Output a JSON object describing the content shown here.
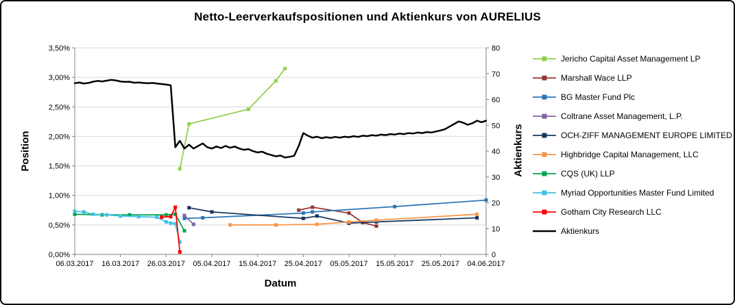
{
  "chart_data": {
    "type": "line",
    "title": "Netto-Leerverkaufspositionen und Aktienkurs von AURELIUS",
    "xlabel": "Datum",
    "ylabel_left": "Position",
    "ylabel_right": "Aktienkurs",
    "x_unit": "days since 06.03.2017",
    "x_range": [
      0,
      90
    ],
    "x_ticks": [
      {
        "day": 0,
        "label": "06.03.2017"
      },
      {
        "day": 10,
        "label": "16.03.2017"
      },
      {
        "day": 20,
        "label": "26.03.2017"
      },
      {
        "day": 30,
        "label": "05.04.2017"
      },
      {
        "day": 40,
        "label": "15.04.2017"
      },
      {
        "day": 50,
        "label": "25.04.2017"
      },
      {
        "day": 60,
        "label": "05.05.2017"
      },
      {
        "day": 70,
        "label": "15.05.2017"
      },
      {
        "day": 80,
        "label": "25.05.2017"
      },
      {
        "day": 90,
        "label": "04.06.2017"
      }
    ],
    "y_left": {
      "min": 0,
      "max": 3.5,
      "step": 0.5,
      "unit": "%",
      "tick_labels": [
        "0,00%",
        "0,50%",
        "1,00%",
        "1,50%",
        "2,00%",
        "2,50%",
        "3,00%",
        "3,50%"
      ]
    },
    "y_right": {
      "min": 0,
      "max": 80,
      "step": 10,
      "tick_labels": [
        "0",
        "10",
        "20",
        "30",
        "40",
        "50",
        "60",
        "70",
        "80"
      ]
    },
    "grid": "horizontal",
    "legend_position": "right",
    "series": [
      {
        "name": "Jericho Capital Asset Management LP",
        "color": "#92D050",
        "axis": "left",
        "width": 1.8,
        "markers": true,
        "points": [
          [
            23,
            1.45
          ],
          [
            25,
            2.21
          ],
          [
            38,
            2.46
          ],
          [
            44,
            2.94
          ],
          [
            46,
            3.15
          ]
        ]
      },
      {
        "name": "Marshall Wace LLP",
        "color": "#953735",
        "axis": "left",
        "width": 1.8,
        "markers": true,
        "points": [
          [
            49,
            0.75
          ],
          [
            52,
            0.8
          ],
          [
            60,
            0.7
          ],
          [
            63,
            0.54
          ],
          [
            66,
            0.48
          ]
        ]
      },
      {
        "name": "BG Master Fund Plc",
        "color": "#2E75B6",
        "axis": "left",
        "width": 1.8,
        "markers": true,
        "points": [
          [
            24,
            0.61
          ],
          [
            28,
            0.62
          ],
          [
            50,
            0.7
          ],
          [
            52,
            0.72
          ],
          [
            70,
            0.81
          ],
          [
            90,
            0.92
          ]
        ]
      },
      {
        "name": "Coltrane Asset Management, L.P.",
        "color": "#8064A2",
        "axis": "left",
        "width": 1.8,
        "markers": true,
        "points": [
          [
            24,
            0.66
          ],
          [
            26,
            0.51
          ]
        ]
      },
      {
        "name": "OCH-ZIFF MANAGEMENT EUROPE LIMITED",
        "color": "#17375E",
        "axis": "left",
        "width": 1.8,
        "markers": true,
        "points": [
          [
            25,
            0.79
          ],
          [
            30,
            0.72
          ],
          [
            50,
            0.61
          ],
          [
            53,
            0.65
          ],
          [
            60,
            0.53
          ],
          [
            66,
            0.55
          ],
          [
            88,
            0.62
          ]
        ]
      },
      {
        "name": "Highbridge Capital Management, LLC",
        "color": "#F79646",
        "axis": "left",
        "width": 1.8,
        "markers": true,
        "points": [
          [
            34,
            0.5
          ],
          [
            44,
            0.5
          ],
          [
            53,
            0.51
          ],
          [
            60,
            0.55
          ],
          [
            66,
            0.58
          ],
          [
            88,
            0.68
          ]
        ]
      },
      {
        "name": "CQS (UK) LLP",
        "color": "#00A550",
        "axis": "left",
        "width": 1.8,
        "markers": true,
        "points": [
          [
            0,
            0.68
          ],
          [
            6,
            0.67
          ],
          [
            12,
            0.67
          ],
          [
            20,
            0.67
          ],
          [
            22,
            0.68
          ],
          [
            24,
            0.4
          ]
        ]
      },
      {
        "name": "Myriad Opportunities Master Fund Limited",
        "color": "#3FC1E5",
        "axis": "left",
        "width": 1.8,
        "markers": true,
        "points": [
          [
            0,
            0.73
          ],
          [
            2,
            0.72
          ],
          [
            4,
            0.68
          ],
          [
            7,
            0.67
          ],
          [
            10,
            0.65
          ],
          [
            14,
            0.64
          ],
          [
            18,
            0.63
          ],
          [
            20,
            0.55
          ],
          [
            21,
            0.53
          ],
          [
            22,
            0.52
          ],
          [
            23,
            0.21
          ]
        ]
      },
      {
        "name": "Gotham City Research LLC",
        "color": "#FF0000",
        "axis": "left",
        "width": 1.8,
        "markers": true,
        "points": [
          [
            19,
            0.63
          ],
          [
            21,
            0.64
          ],
          [
            22,
            0.8
          ],
          [
            23,
            0.04
          ]
        ]
      },
      {
        "name": "Aktienkurs",
        "color": "#000000",
        "axis": "right",
        "width": 2.5,
        "markers": false,
        "points": [
          [
            0,
            66.3
          ],
          [
            1,
            66.6
          ],
          [
            2,
            66.2
          ],
          [
            3,
            66.4
          ],
          [
            4,
            66.9
          ],
          [
            5,
            67.2
          ],
          [
            6,
            67.0
          ],
          [
            7,
            67.3
          ],
          [
            8,
            67.6
          ],
          [
            9,
            67.4
          ],
          [
            10,
            67.0
          ],
          [
            11,
            66.8
          ],
          [
            12,
            66.9
          ],
          [
            13,
            66.5
          ],
          [
            14,
            66.6
          ],
          [
            15,
            66.4
          ],
          [
            16,
            66.3
          ],
          [
            17,
            66.4
          ],
          [
            18,
            66.2
          ],
          [
            19,
            66.0
          ],
          [
            20,
            65.8
          ],
          [
            21,
            65.5
          ],
          [
            22,
            41.5
          ],
          [
            23,
            44.0
          ],
          [
            24,
            41.0
          ],
          [
            25,
            42.5
          ],
          [
            26,
            41.0
          ],
          [
            27,
            42.0
          ],
          [
            28,
            43.0
          ],
          [
            29,
            41.5
          ],
          [
            30,
            41.0
          ],
          [
            31,
            41.8
          ],
          [
            32,
            41.2
          ],
          [
            33,
            42.0
          ],
          [
            34,
            41.3
          ],
          [
            35,
            41.8
          ],
          [
            36,
            41.0
          ],
          [
            37,
            40.5
          ],
          [
            38,
            40.8
          ],
          [
            39,
            40.0
          ],
          [
            40,
            39.5
          ],
          [
            41,
            39.8
          ],
          [
            42,
            39.0
          ],
          [
            43,
            38.5
          ],
          [
            44,
            38.0
          ],
          [
            45,
            38.3
          ],
          [
            46,
            37.5
          ],
          [
            47,
            37.8
          ],
          [
            48,
            38.2
          ],
          [
            49,
            42.0
          ],
          [
            50,
            47.0
          ],
          [
            51,
            46.0
          ],
          [
            52,
            45.2
          ],
          [
            53,
            45.6
          ],
          [
            54,
            45.0
          ],
          [
            55,
            45.4
          ],
          [
            56,
            45.1
          ],
          [
            57,
            45.5
          ],
          [
            58,
            45.2
          ],
          [
            59,
            45.6
          ],
          [
            60,
            45.4
          ],
          [
            61,
            45.8
          ],
          [
            62,
            45.5
          ],
          [
            63,
            46.0
          ],
          [
            64,
            45.8
          ],
          [
            65,
            46.2
          ],
          [
            66,
            46.0
          ],
          [
            67,
            46.4
          ],
          [
            68,
            46.2
          ],
          [
            69,
            46.6
          ],
          [
            70,
            46.4
          ],
          [
            71,
            46.8
          ],
          [
            72,
            46.6
          ],
          [
            73,
            47.0
          ],
          [
            74,
            46.8
          ],
          [
            75,
            47.2
          ],
          [
            76,
            47.0
          ],
          [
            77,
            47.4
          ],
          [
            78,
            47.2
          ],
          [
            79,
            47.6
          ],
          [
            80,
            48.0
          ],
          [
            81,
            48.5
          ],
          [
            82,
            49.5
          ],
          [
            83,
            50.5
          ],
          [
            84,
            51.5
          ],
          [
            85,
            51.0
          ],
          [
            86,
            50.2
          ],
          [
            87,
            50.8
          ],
          [
            88,
            51.8
          ],
          [
            89,
            51.2
          ],
          [
            90,
            51.8
          ]
        ]
      }
    ]
  }
}
